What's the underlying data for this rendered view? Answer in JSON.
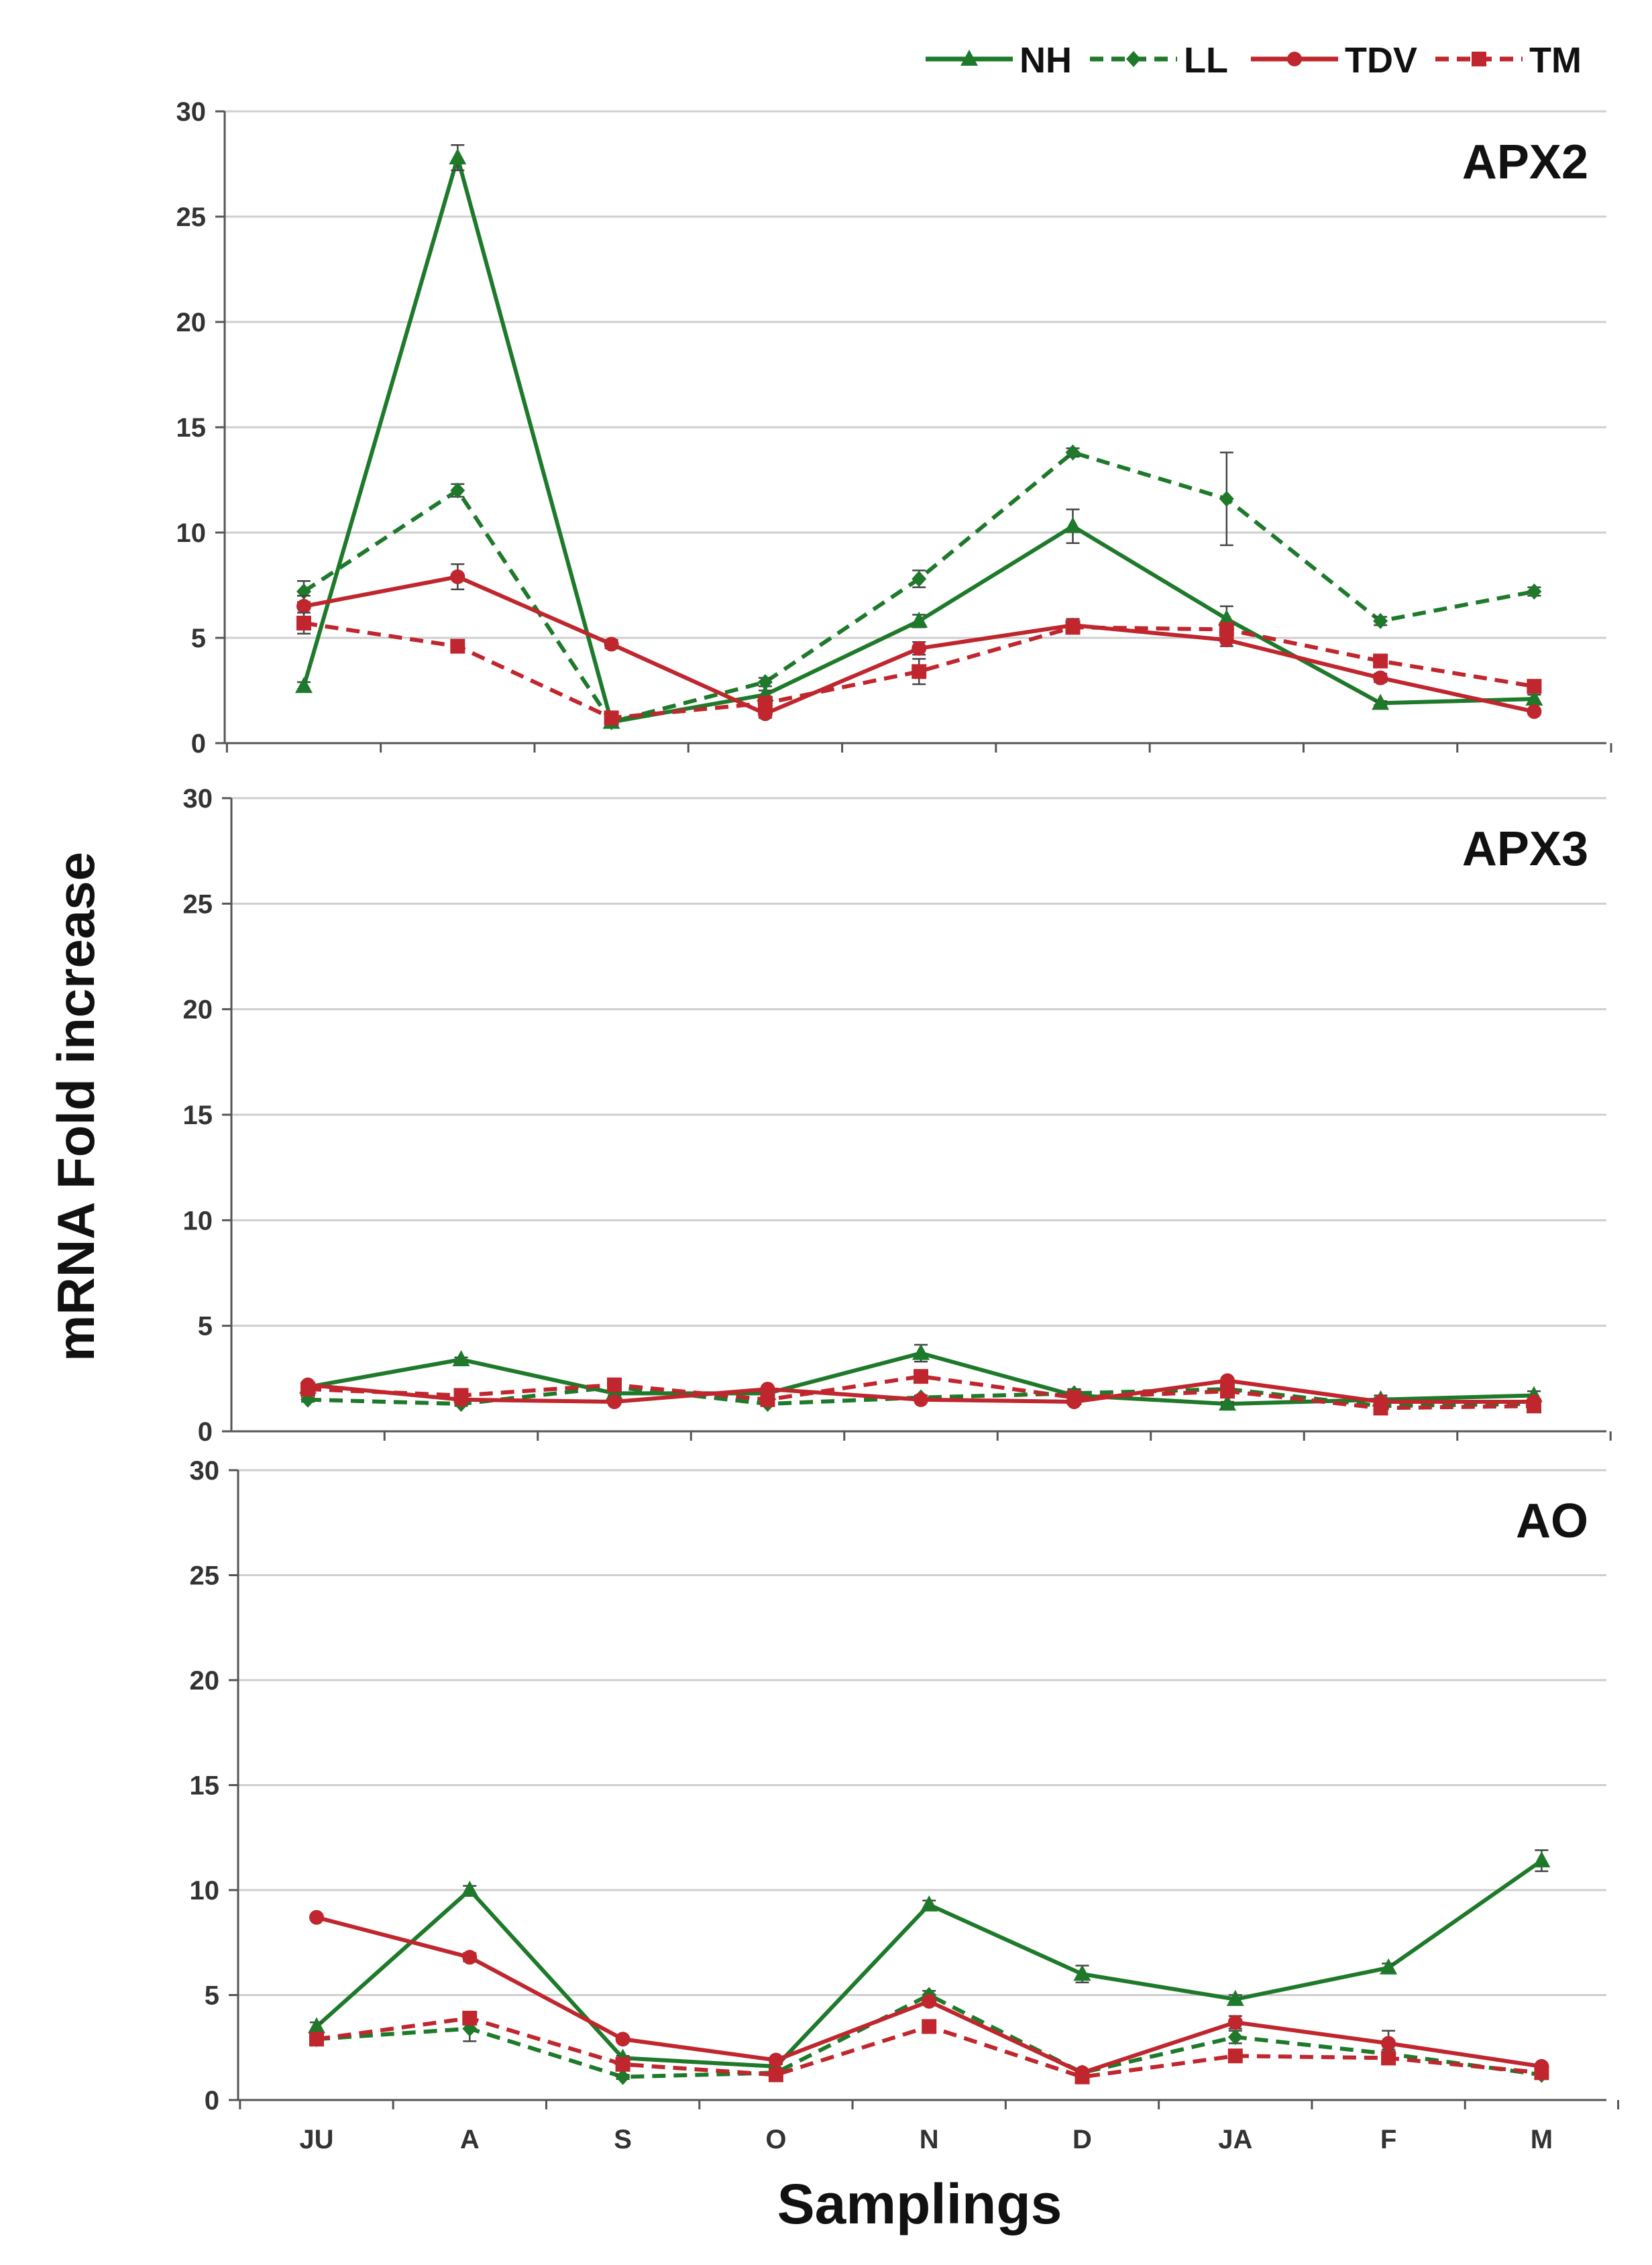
{
  "chart_data": {
    "type": "line",
    "ylabel": "mRNA Fold increase",
    "xlabel": "Samplings",
    "categories": [
      "JU",
      "A",
      "S",
      "O",
      "N",
      "D",
      "JA",
      "F",
      "M"
    ],
    "ylim": [
      0,
      30
    ],
    "yticks": [
      0,
      5,
      10,
      15,
      20,
      25,
      30
    ],
    "legend": {
      "placement": "top-right",
      "entries": [
        {
          "name": "NH",
          "color": "#1e7a2a",
          "dash": "solid",
          "marker": "triangle"
        },
        {
          "name": "LL",
          "color": "#1e7a2a",
          "dash": "dashed",
          "marker": "diamond"
        },
        {
          "name": "TDV",
          "color": "#c0262d",
          "dash": "solid",
          "marker": "circle"
        },
        {
          "name": "TM",
          "color": "#c0262d",
          "dash": "dashed",
          "marker": "square"
        }
      ]
    },
    "panels": [
      {
        "title": "APX2",
        "series": [
          {
            "name": "NH",
            "values": [
              2.7,
              27.8,
              1.0,
              2.3,
              5.8,
              10.3,
              5.9,
              1.9,
              2.1
            ],
            "errors": [
              0.2,
              0.6,
              0.1,
              0.2,
              0.3,
              0.8,
              0.6,
              0.1,
              0.2
            ]
          },
          {
            "name": "LL",
            "values": [
              7.2,
              12.0,
              1.0,
              2.9,
              7.8,
              13.8,
              11.6,
              5.8,
              7.2
            ],
            "errors": [
              0.5,
              0.3,
              0.1,
              0.2,
              0.4,
              0.2,
              2.2,
              0.2,
              0.2
            ]
          },
          {
            "name": "TDV",
            "values": [
              6.5,
              7.9,
              4.7,
              1.4,
              4.5,
              5.6,
              4.9,
              3.1,
              1.5
            ],
            "errors": [
              0.5,
              0.6,
              0.2,
              0.2,
              0.3,
              0.3,
              0.3,
              0.2,
              0.1
            ]
          },
          {
            "name": "TM",
            "values": [
              5.7,
              4.6,
              1.2,
              1.9,
              3.4,
              5.5,
              5.4,
              3.9,
              2.7
            ],
            "errors": [
              0.5,
              0.3,
              0.1,
              0.2,
              0.6,
              0.3,
              0.3,
              0.2,
              0.2
            ]
          }
        ]
      },
      {
        "title": "APX3",
        "series": [
          {
            "name": "NH",
            "values": [
              2.1,
              3.4,
              1.8,
              1.8,
              3.7,
              1.7,
              1.3,
              1.5,
              1.7
            ],
            "errors": [
              0.1,
              0.1,
              0.1,
              0.1,
              0.4,
              0.3,
              0.1,
              0.2,
              0.2
            ]
          },
          {
            "name": "LL",
            "values": [
              1.5,
              1.3,
              2.1,
              1.3,
              1.6,
              1.8,
              2.0,
              1.2,
              1.3
            ],
            "errors": [
              0.1,
              0.1,
              0.1,
              0.1,
              0.1,
              0.2,
              0.2,
              0.1,
              0.1
            ]
          },
          {
            "name": "TDV",
            "values": [
              2.2,
              1.5,
              1.4,
              2.0,
              1.5,
              1.4,
              2.4,
              1.4,
              1.4
            ],
            "errors": [
              0.1,
              0.1,
              0.1,
              0.1,
              0.1,
              0.1,
              0.1,
              0.2,
              0.1
            ]
          },
          {
            "name": "TM",
            "values": [
              2.0,
              1.7,
              2.2,
              1.5,
              2.6,
              1.6,
              1.9,
              1.1,
              1.2
            ],
            "errors": [
              0.1,
              0.1,
              0.1,
              0.1,
              0.1,
              0.1,
              0.2,
              0.1,
              0.1
            ]
          }
        ]
      },
      {
        "title": "AO",
        "series": [
          {
            "name": "NH",
            "values": [
              3.5,
              10.0,
              2.0,
              1.6,
              9.3,
              6.0,
              4.8,
              6.3,
              11.4
            ],
            "errors": [
              0.2,
              0.2,
              0.1,
              0.1,
              0.2,
              0.4,
              0.2,
              0.2,
              0.5
            ]
          },
          {
            "name": "LL",
            "values": [
              2.9,
              3.4,
              1.1,
              1.3,
              5.0,
              1.3,
              3.0,
              2.2,
              1.2
            ],
            "errors": [
              0.2,
              0.6,
              0.1,
              0.1,
              0.2,
              0.1,
              0.3,
              0.2,
              0.1
            ]
          },
          {
            "name": "TDV",
            "values": [
              8.7,
              6.8,
              2.9,
              1.9,
              4.7,
              1.3,
              3.7,
              2.7,
              1.6
            ],
            "errors": [
              0.1,
              0.2,
              0.1,
              0.1,
              0.1,
              0.1,
              0.3,
              0.6,
              0.1
            ]
          },
          {
            "name": "TM",
            "values": [
              2.9,
              3.9,
              1.7,
              1.2,
              3.5,
              1.1,
              2.1,
              2.0,
              1.3
            ],
            "errors": [
              0.2,
              0.3,
              0.1,
              0.1,
              0.2,
              0.1,
              0.2,
              0.2,
              0.1
            ]
          }
        ]
      }
    ]
  }
}
